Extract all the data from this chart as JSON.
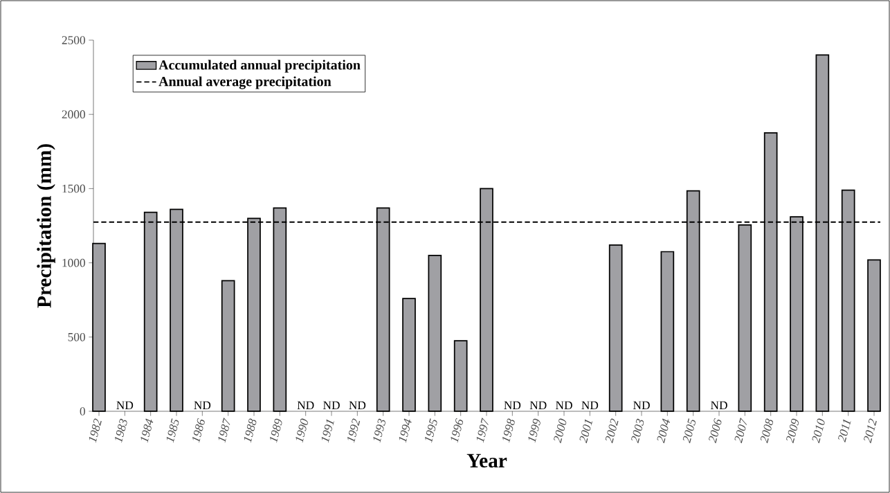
{
  "chart_data": {
    "type": "bar",
    "xlabel": "Year",
    "ylabel": "Precipitation (mm)",
    "categories": [
      "1982",
      "1983",
      "1984",
      "1985",
      "1986",
      "1987",
      "1988",
      "1989",
      "1990",
      "1991",
      "1992",
      "1993",
      "1994",
      "1995",
      "1996",
      "1997",
      "1998",
      "1999",
      "2000",
      "2001",
      "2002",
      "2003",
      "2004",
      "2005",
      "2006",
      "2007",
      "2008",
      "2009",
      "2010",
      "2011",
      "2012"
    ],
    "series": [
      {
        "name": "Accumulated annual precipitation",
        "color": "#a0a0a4",
        "values": [
          1130,
          null,
          1340,
          1360,
          null,
          880,
          1300,
          1370,
          null,
          null,
          null,
          1370,
          760,
          1050,
          475,
          1500,
          null,
          null,
          null,
          null,
          1120,
          null,
          1075,
          1485,
          null,
          1255,
          1875,
          1310,
          2400,
          1490,
          1020
        ],
        "value_labels": [
          null,
          "ND",
          null,
          null,
          "ND",
          null,
          null,
          null,
          "ND",
          "ND",
          "ND",
          null,
          null,
          null,
          null,
          null,
          "ND",
          "ND",
          "ND",
          "ND",
          null,
          "ND",
          null,
          null,
          "ND",
          null,
          null,
          null,
          null,
          null,
          null
        ]
      }
    ],
    "ylim": [
      0,
      2500
    ],
    "yticks": [
      0,
      500,
      1000,
      1500,
      2000,
      2500
    ],
    "ref_lines": [
      {
        "axis": "y",
        "value": 1275,
        "label": "Annual average precipitation",
        "color": "#000000",
        "line_style": "dashed"
      }
    ],
    "legend": "top left",
    "grid": false
  }
}
